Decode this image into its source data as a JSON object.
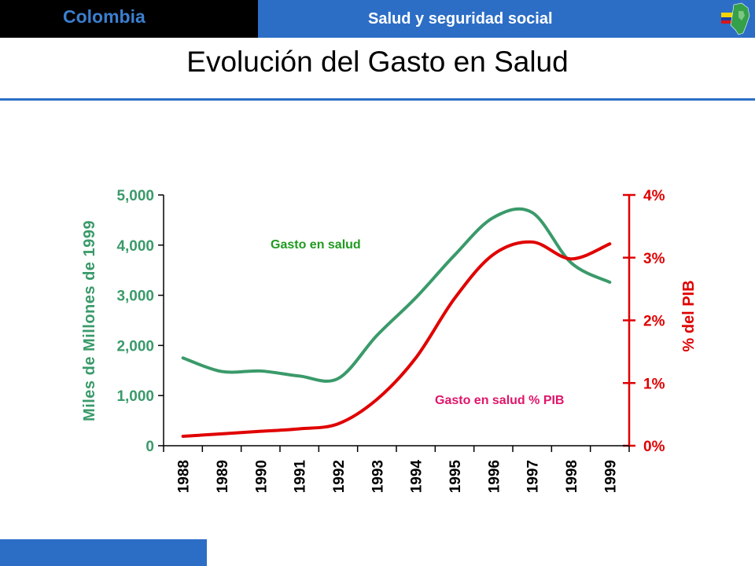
{
  "header": {
    "country": "Colombia",
    "section": "Salud y seguridad social",
    "flag_icon": "colombia-map-flag-icon"
  },
  "title": "Evolución del Gasto en Salud",
  "colors": {
    "header_left_bg": "#000000",
    "header_right_bg": "#2c6ec6",
    "country_text": "#3b7fd0",
    "green": "#3a9a6a",
    "red": "#e00000",
    "pink_label": "#e0156a",
    "green_label": "#1f9a1f"
  },
  "chart_data": {
    "type": "line",
    "categories": [
      "1988",
      "1989",
      "1990",
      "1991",
      "1992",
      "1993",
      "1994",
      "1995",
      "1996",
      "1997",
      "1998",
      "1999"
    ],
    "series": [
      {
        "name": "Gasto en salud",
        "axis": "left",
        "color": "#3a9a6a",
        "values": [
          1750,
          1480,
          1490,
          1390,
          1340,
          2200,
          2950,
          3800,
          4550,
          4650,
          3650,
          3260
        ]
      },
      {
        "name": "Gasto en salud % PIB",
        "axis": "right",
        "color": "#e00000",
        "values": [
          0.15,
          0.19,
          0.23,
          0.27,
          0.35,
          0.74,
          1.4,
          2.35,
          3.05,
          3.25,
          2.98,
          3.22
        ]
      }
    ],
    "y_left": {
      "label": "Miles de Millones de 1999",
      "ticks": [
        "0",
        "1,000",
        "2,000",
        "3,000",
        "4,000",
        "5,000"
      ],
      "tick_values": [
        0,
        1000,
        2000,
        3000,
        4000,
        5000
      ],
      "range": [
        0,
        5000
      ]
    },
    "y_right": {
      "label": "% del PIB",
      "ticks": [
        "0%",
        "1%",
        "2%",
        "3%",
        "4%"
      ],
      "tick_values": [
        0,
        1,
        2,
        3,
        4
      ],
      "range": [
        0,
        4
      ]
    },
    "annotations": {
      "green": "Gasto en salud",
      "red": "Gasto en salud % PIB"
    },
    "grid": false,
    "legend": "none"
  }
}
